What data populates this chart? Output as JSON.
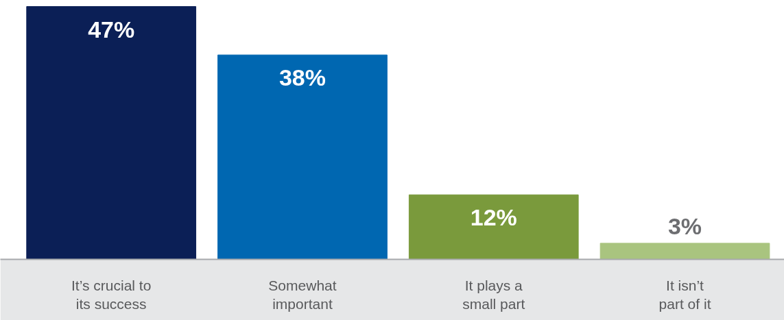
{
  "chart_data": {
    "type": "bar",
    "categories": [
      "It’s crucial to\nits success",
      "Somewhat\nimportant",
      "It plays a\nsmall part",
      "It isn’t\npart of it"
    ],
    "values": [
      47,
      38,
      12,
      3
    ],
    "colors": [
      "#0b1f56",
      "#0067b1",
      "#7a9a3c",
      "#a9c47f"
    ],
    "value_labels": [
      "47%",
      "38%",
      "12%",
      "3%"
    ],
    "grid": false
  }
}
